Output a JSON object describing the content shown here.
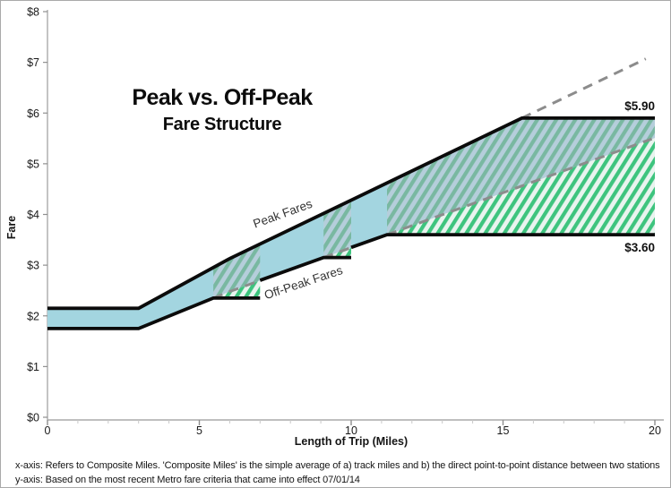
{
  "chart_data": {
    "type": "area",
    "title": "Peak vs. Off-Peak",
    "subtitle": "Fare Structure",
    "xlabel": "Length of Trip (Miles)",
    "ylabel": "Fare",
    "xlim": [
      0,
      20
    ],
    "ylim": [
      0,
      8
    ],
    "grid": false,
    "x_major_ticks": [
      0,
      5,
      10,
      15,
      20
    ],
    "x_minor_tick_step": 1,
    "y_tick_values": [
      0,
      1,
      2,
      3,
      4,
      5,
      6,
      7,
      8
    ],
    "y_tick_labels": [
      "$0",
      "$1",
      "$2",
      "$3",
      "$4",
      "$5",
      "$6",
      "$7",
      "$8"
    ],
    "series": [
      {
        "name": "Peak Fares",
        "points": [
          [
            0,
            2.15
          ],
          [
            3,
            2.15
          ],
          [
            6,
            3.13
          ],
          [
            15.62,
            5.9
          ],
          [
            20,
            5.9
          ]
        ]
      },
      {
        "name": "Off-Peak Fares",
        "segments": [
          [
            [
              0,
              1.75
            ],
            [
              3,
              1.75
            ],
            [
              5.46,
              2.35
            ],
            [
              7,
              2.35
            ]
          ],
          [
            [
              7,
              2.7
            ],
            [
              9.09,
              3.15
            ],
            [
              10,
              3.15
            ]
          ],
          [
            [
              10,
              3.35
            ],
            [
              11.18,
              3.6
            ],
            [
              20,
              3.6
            ]
          ]
        ]
      }
    ],
    "uncapped_offpeak_line": [
      [
        0,
        1.75
      ],
      [
        3,
        1.75
      ],
      [
        6,
        2.48
      ],
      [
        20,
        5.51
      ]
    ],
    "peak_extension_dashed": [
      [
        15.62,
        5.9
      ],
      [
        19.7,
        7.07
      ]
    ],
    "offpeak_dashed_ranges": [
      [
        5.46,
        7
      ],
      [
        9.09,
        10
      ],
      [
        11.18,
        19.9
      ]
    ],
    "cap_bands": [
      {
        "x1": 5.46,
        "x2": 7,
        "cap": 2.35
      },
      {
        "x1": 9.09,
        "x2": 10,
        "cap": 3.15
      },
      {
        "x1": 11.18,
        "x2": 20,
        "cap": 3.6
      }
    ],
    "annotations": [
      {
        "text": "$5.90",
        "x": 20,
        "y": 6.06,
        "anchor": "end"
      },
      {
        "text": "$3.60",
        "x": 20,
        "y": 3.27,
        "anchor": "end"
      }
    ],
    "line_labels": [
      {
        "text": "Peak Fares",
        "x": 7.79,
        "y": 3.94,
        "angle": -20
      },
      {
        "text": "Off-Peak Fares",
        "x": 8.47,
        "y": 2.58,
        "angle": -18.5
      }
    ],
    "footnotes": [
      "x-axis: Refers to Composite Miles. 'Composite Miles' is the simple average of a) track miles and b) the direct point-to-point distance between two stations",
      "y-axis: Based on the most recent Metro fare criteria that came into effect 07/01/14"
    ],
    "colors": {
      "band_fill": "#a3d5e0",
      "hatch_green": "#3ec47e",
      "hatch_bg": "#e9f4ef",
      "hatch_green_muted": "#79b8a1",
      "hatch_bg_muted": "#b5cedb",
      "line_black": "#0b0b0b",
      "dashed_gray": "#8c8c8c",
      "axis_gray": "#aaaaaa",
      "tick_major": "#8f8f8f",
      "tick_minor": "#c8c8c8",
      "text_dark": "#1a1a1a"
    }
  }
}
